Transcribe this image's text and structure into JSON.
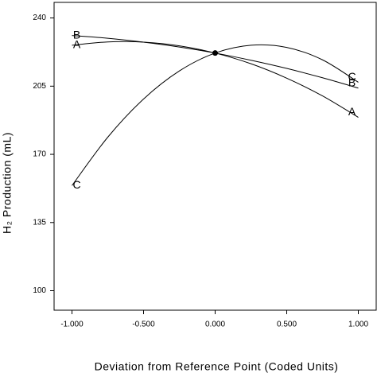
{
  "chart_data": {
    "type": "line",
    "x_label": "Deviation from Reference Point (Coded Units)",
    "y_label": "H₂ Production (mL)",
    "x": [
      -1,
      -0.75,
      -0.5,
      -0.25,
      0,
      0.25,
      0.5,
      0.75,
      1
    ],
    "series": [
      {
        "name": "A",
        "color": "#000000",
        "values": [
          226,
          227.7,
          227.6,
          225.7,
          222,
          216.5,
          209.1,
          200.0,
          189
        ]
      },
      {
        "name": "B",
        "color": "#000000",
        "values": [
          231,
          229.6,
          227.6,
          225.1,
          222,
          218.3,
          214.1,
          209.3,
          204
        ]
      },
      {
        "name": "C",
        "color": "#000000",
        "values": [
          154,
          178.8,
          198.4,
          212.8,
          222,
          226.0,
          224.9,
          218.5,
          207
        ]
      }
    ],
    "xlim": [
      -1.125,
      1.125
    ],
    "ylim": [
      90,
      248
    ],
    "xticks": [
      {
        "value": -1,
        "label": "-1.000"
      },
      {
        "value": -0.5,
        "label": "-0.500"
      },
      {
        "value": 0,
        "label": "0.000"
      },
      {
        "value": 0.5,
        "label": "0.500"
      },
      {
        "value": 1,
        "label": "1.000"
      }
    ],
    "yticks": [
      100,
      135,
      170,
      205,
      240
    ]
  }
}
